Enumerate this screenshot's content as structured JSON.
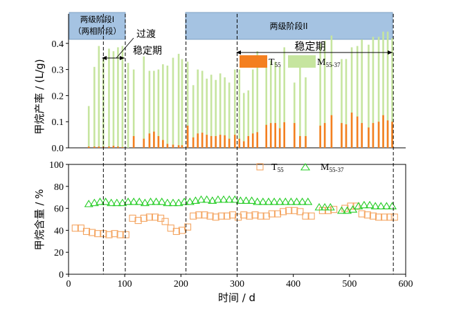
{
  "chart_data": [
    {
      "type": "bar",
      "panel": "top",
      "ylabel": "甲烷产率 / (L/g)",
      "xlim": [
        0,
        600
      ],
      "ylim": [
        0,
        0.5
      ],
      "yticks": [
        "0.0",
        "0.1",
        "0.2",
        "0.3",
        "0.4"
      ],
      "grid": false,
      "stage_labels": {
        "stage1_line1": "两级阶段I",
        "stage1_line2": "（两相阶段）",
        "transition_line1": "过渡",
        "transition_line2": "稳定期",
        "stage2": "两级阶段II",
        "stable": "稳定期"
      },
      "stage_spans": {
        "stage1": [
          0,
          101
        ],
        "stage2": [
          209,
          582
        ],
        "transition": [
          62,
          101
        ],
        "stable": [
          300,
          582
        ]
      },
      "vlines": [
        62,
        101,
        209,
        300,
        578
      ],
      "legend": {
        "position": "top-right-inside",
        "t_label": "T",
        "t_sub": "55",
        "m_label": "M",
        "m_sub": "55-37"
      },
      "series": [
        {
          "name": "T55",
          "color": "#f47f20",
          "points": [
            [
              36,
              0.005
            ],
            [
              46,
              0.005
            ],
            [
              54,
              0.005
            ],
            [
              62,
              0.005
            ],
            [
              72,
              0.005
            ],
            [
              80,
              0.008
            ],
            [
              88,
              0.005
            ],
            [
              96,
              0.003
            ],
            [
              116,
              0.045
            ],
            [
              134,
              0.035
            ],
            [
              144,
              0.055
            ],
            [
              152,
              0.062
            ],
            [
              160,
              0.045
            ],
            [
              168,
              0.03
            ],
            [
              176,
              0.015
            ],
            [
              186,
              0.012
            ],
            [
              196,
              0.01
            ],
            [
              202,
              0.01
            ],
            [
              212,
              0.085
            ],
            [
              222,
              0.04
            ],
            [
              230,
              0.055
            ],
            [
              238,
              0.058
            ],
            [
              246,
              0.05
            ],
            [
              254,
              0.045
            ],
            [
              262,
              0.045
            ],
            [
              270,
              0.05
            ],
            [
              278,
              0.048
            ],
            [
              286,
              0.035
            ],
            [
              296,
              0.05
            ],
            [
              304,
              0.035
            ],
            [
              312,
              0.025
            ],
            [
              320,
              0.045
            ],
            [
              328,
              0.055
            ],
            [
              336,
              0.06
            ],
            [
              352,
              0.088
            ],
            [
              360,
              0.095
            ],
            [
              368,
              0.095
            ],
            [
              376,
              0.075
            ],
            [
              384,
              0.098
            ],
            [
              402,
              0.095
            ],
            [
              412,
              0.045
            ],
            [
              422,
              0.045
            ],
            [
              448,
              0.085
            ],
            [
              456,
              0.095
            ],
            [
              468,
              0.125
            ],
            [
              486,
              0.095
            ],
            [
              494,
              0.09
            ],
            [
              504,
              0.135
            ],
            [
              514,
              0.12
            ],
            [
              522,
              0.095
            ],
            [
              534,
              0.078
            ],
            [
              542,
              0.095
            ],
            [
              552,
              0.1
            ],
            [
              560,
              0.125
            ],
            [
              568,
              0.105
            ],
            [
              576,
              0.1
            ]
          ]
        },
        {
          "name": "M55-37",
          "color": "#c6e59f",
          "points": [
            [
              36,
              0.16
            ],
            [
              46,
              0.31
            ],
            [
              54,
              0.39
            ],
            [
              62,
              0.34
            ],
            [
              72,
              0.38
            ],
            [
              80,
              0.37
            ],
            [
              88,
              0.385
            ],
            [
              96,
              0.39
            ],
            [
              106,
              0.325
            ],
            [
              116,
              0.3
            ],
            [
              134,
              0.35
            ],
            [
              144,
              0.295
            ],
            [
              152,
              0.295
            ],
            [
              160,
              0.3
            ],
            [
              168,
              0.32
            ],
            [
              176,
              0.315
            ],
            [
              186,
              0.345
            ],
            [
              196,
              0.36
            ],
            [
              202,
              0.34
            ],
            [
              212,
              0.33
            ],
            [
              222,
              0.24
            ],
            [
              230,
              0.3
            ],
            [
              238,
              0.295
            ],
            [
              246,
              0.265
            ],
            [
              254,
              0.28
            ],
            [
              262,
              0.26
            ],
            [
              270,
              0.285
            ],
            [
              278,
              0.27
            ],
            [
              286,
              0.25
            ],
            [
              296,
              0.3
            ],
            [
              304,
              0.3
            ],
            [
              312,
              0.21
            ],
            [
              320,
              0.22
            ],
            [
              328,
              0.3
            ],
            [
              336,
              0.37
            ],
            [
              352,
              0.33
            ],
            [
              360,
              0.335
            ],
            [
              368,
              0.33
            ],
            [
              376,
              0.31
            ],
            [
              384,
              0.385
            ],
            [
              402,
              0.25
            ],
            [
              412,
              0.315
            ],
            [
              422,
              0.27
            ],
            [
              448,
              0.4
            ],
            [
              456,
              0.41
            ],
            [
              468,
              0.43
            ],
            [
              486,
              0.34
            ],
            [
              494,
              0.34
            ],
            [
              504,
              0.385
            ],
            [
              514,
              0.39
            ],
            [
              522,
              0.415
            ],
            [
              534,
              0.395
            ],
            [
              542,
              0.425
            ],
            [
              552,
              0.425
            ],
            [
              560,
              0.445
            ],
            [
              568,
              0.445
            ],
            [
              576,
              0.42
            ]
          ]
        }
      ]
    },
    {
      "type": "scatter",
      "panel": "bottom",
      "xlabel": "时间 / d",
      "ylabel": "甲烷含量 / %",
      "xlim": [
        0,
        600
      ],
      "ylim": [
        0,
        100
      ],
      "xticks": [
        "0",
        "100",
        "200",
        "300",
        "400",
        "500",
        "600"
      ],
      "yticks": [
        "0",
        "20",
        "40",
        "60",
        "80",
        "100"
      ],
      "grid": false,
      "legend": {
        "position": "top-right",
        "t_label": "T",
        "t_sub": "55",
        "m_label": "M",
        "m_sub": "55-37"
      },
      "series": [
        {
          "name": "T55",
          "marker": "square",
          "color": "#f4a460",
          "points": [
            [
              12,
              42
            ],
            [
              22,
              42
            ],
            [
              32,
              39
            ],
            [
              42,
              38
            ],
            [
              52,
              37
            ],
            [
              62,
              37
            ],
            [
              72,
              36
            ],
            [
              82,
              37
            ],
            [
              92,
              36
            ],
            [
              102,
              36
            ],
            [
              114,
              51
            ],
            [
              124,
              49
            ],
            [
              134,
              51
            ],
            [
              144,
              52
            ],
            [
              154,
              52
            ],
            [
              164,
              51
            ],
            [
              172,
              48
            ],
            [
              182,
              42
            ],
            [
              192,
              39
            ],
            [
              202,
              40
            ],
            [
              212,
              43
            ],
            [
              222,
              53
            ],
            [
              232,
              54
            ],
            [
              242,
              54
            ],
            [
              252,
              53
            ],
            [
              262,
              52
            ],
            [
              272,
              53
            ],
            [
              282,
              53
            ],
            [
              292,
              54
            ],
            [
              302,
              52
            ],
            [
              312,
              54
            ],
            [
              322,
              53
            ],
            [
              332,
              54
            ],
            [
              342,
              53
            ],
            [
              352,
              53
            ],
            [
              362,
              55
            ],
            [
              372,
              55
            ],
            [
              382,
              57
            ],
            [
              392,
              58
            ],
            [
              402,
              58
            ],
            [
              412,
              57
            ],
            [
              422,
              53
            ],
            [
              432,
              53
            ],
            [
              452,
              58
            ],
            [
              462,
              58
            ],
            [
              472,
              59
            ],
            [
              492,
              60
            ],
            [
              502,
              62
            ],
            [
              512,
              62
            ],
            [
              522,
              55
            ],
            [
              532,
              54
            ],
            [
              542,
              53
            ],
            [
              552,
              52
            ],
            [
              562,
              52
            ],
            [
              572,
              52
            ],
            [
              580,
              52
            ]
          ]
        },
        {
          "name": "M55-37",
          "marker": "triangle",
          "color": "#22cc22",
          "points": [
            [
              36,
              64
            ],
            [
              46,
              65
            ],
            [
              56,
              66
            ],
            [
              66,
              66
            ],
            [
              76,
              65
            ],
            [
              86,
              65
            ],
            [
              96,
              65
            ],
            [
              106,
              66
            ],
            [
              116,
              66
            ],
            [
              126,
              66
            ],
            [
              136,
              65
            ],
            [
              146,
              66
            ],
            [
              156,
              66
            ],
            [
              166,
              66
            ],
            [
              176,
              65
            ],
            [
              186,
              65
            ],
            [
              196,
              65
            ],
            [
              206,
              66
            ],
            [
              216,
              66
            ],
            [
              226,
              67
            ],
            [
              236,
              68
            ],
            [
              246,
              68
            ],
            [
              256,
              67
            ],
            [
              266,
              68
            ],
            [
              276,
              68
            ],
            [
              286,
              68
            ],
            [
              296,
              68
            ],
            [
              306,
              67
            ],
            [
              316,
              67
            ],
            [
              326,
              67
            ],
            [
              336,
              66
            ],
            [
              346,
              66
            ],
            [
              356,
              66
            ],
            [
              366,
              66
            ],
            [
              376,
              66
            ],
            [
              386,
              66
            ],
            [
              396,
              66
            ],
            [
              406,
              66
            ],
            [
              416,
              66
            ],
            [
              426,
              66
            ],
            [
              446,
              61
            ],
            [
              456,
              61
            ],
            [
              466,
              61
            ],
            [
              486,
              58
            ],
            [
              496,
              58
            ],
            [
              506,
              59
            ],
            [
              516,
              62
            ],
            [
              526,
              63
            ],
            [
              536,
              63
            ],
            [
              546,
              62
            ],
            [
              556,
              62
            ],
            [
              566,
              62
            ],
            [
              576,
              62
            ]
          ]
        }
      ]
    }
  ]
}
